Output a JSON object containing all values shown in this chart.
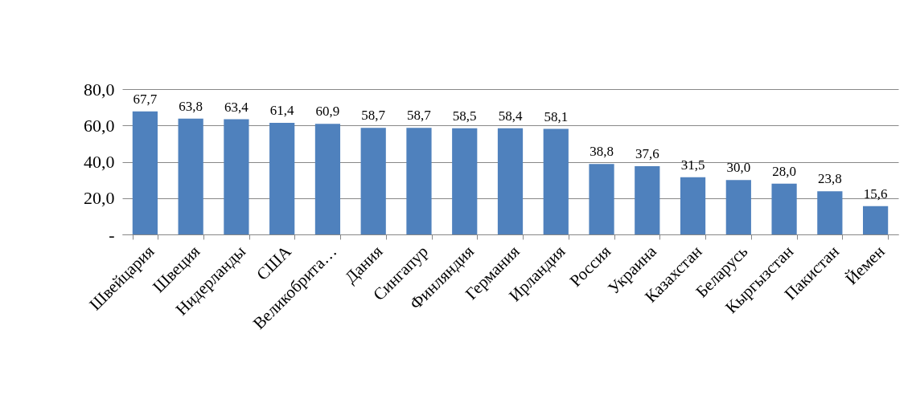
{
  "chart_data": {
    "type": "bar",
    "categories": [
      "Швейцария",
      "Швеция",
      "Нидерланды",
      "США",
      "Великобрита…",
      "Дания",
      "Сингапур",
      "Финляндия",
      "Германия",
      "Ирландия",
      "Россия",
      "Украина",
      "Казахстан",
      "Беларусь",
      "Кыргызстан",
      "Пакистан",
      "Йемен"
    ],
    "values": [
      67.7,
      63.8,
      63.4,
      61.4,
      60.9,
      58.7,
      58.7,
      58.5,
      58.4,
      58.1,
      38.8,
      37.6,
      31.5,
      30.0,
      28.0,
      23.8,
      15.6
    ],
    "value_labels": [
      "67,7",
      "63,8",
      "63,4",
      "61,4",
      "60,9",
      "58,7",
      "58,7",
      "58,5",
      "58,4",
      "58,1",
      "38,8",
      "37,6",
      "31,5",
      "30,0",
      "28,0",
      "23,8",
      "15,6"
    ],
    "color": "#4f81bd",
    "ylim": [
      0,
      80
    ],
    "yticks": [
      {
        "value": 0,
        "label": "-"
      },
      {
        "value": 20,
        "label": "20,0"
      },
      {
        "value": 40,
        "label": "40,0"
      },
      {
        "value": 60,
        "label": "60,0"
      },
      {
        "value": 80,
        "label": "80,0"
      }
    ],
    "grid": "y"
  }
}
